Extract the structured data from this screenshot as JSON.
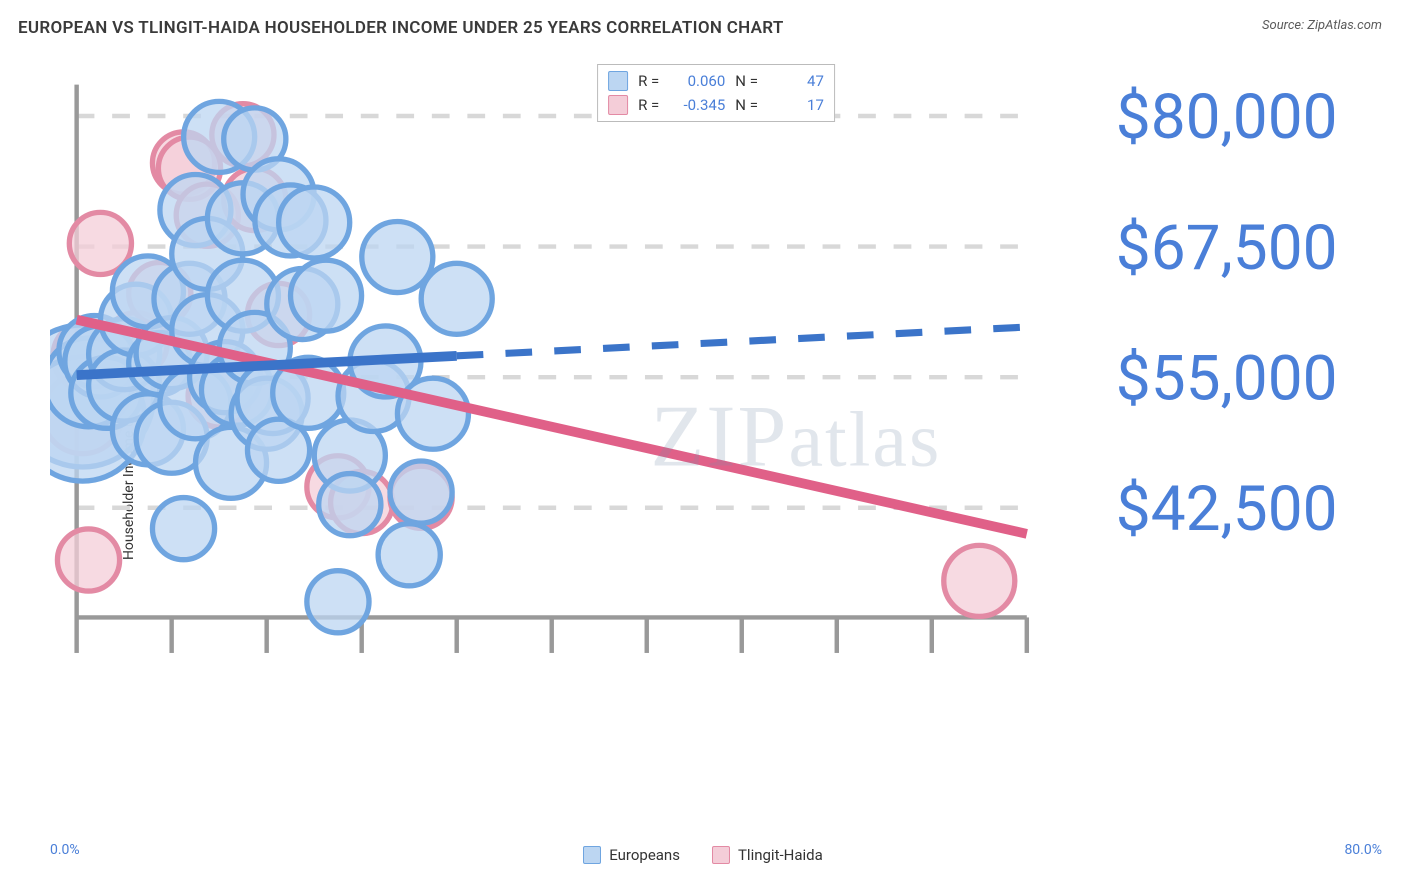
{
  "header": {
    "title": "EUROPEAN VS TLINGIT-HAIDA HOUSEHOLDER INCOME UNDER 25 YEARS CORRELATION CHART",
    "source": "Source: ZipAtlas.com"
  },
  "watermark": "ZIPatlas",
  "chart": {
    "type": "scatter",
    "ylabel": "Householder Income Under 25 years",
    "xlim": [
      0,
      80
    ],
    "ylim": [
      32000,
      83000
    ],
    "x_unit": "%",
    "y_unit": "$",
    "x_ticks_minor_step": 8,
    "y_ticks": [
      42500,
      55000,
      67500,
      80000
    ],
    "y_tick_labels": [
      "$42,500",
      "$55,000",
      "$67,500",
      "$80,000"
    ],
    "x_axis_labels": {
      "min": "0.0%",
      "max": "80.0%"
    },
    "grid_color": "#d8d8d8",
    "axis_color": "#999999",
    "background_color": "#ffffff",
    "label_fontsize": 14,
    "tick_label_color": "#4a7fd8",
    "series": {
      "europeans": {
        "label": "Europeans",
        "fill": "#bcd6f2",
        "stroke": "#6fa5e0",
        "line_color": "#3b74c9",
        "r_value": "0.060",
        "n_value": "47",
        "trend": {
          "y_at_xmin": 55200,
          "y_at_xmax": 59800,
          "solid_until_x": 32
        },
        "points": [
          {
            "x": 0.5,
            "y": 53200,
            "r": 16
          },
          {
            "x": 0.5,
            "y": 51000,
            "r": 14
          },
          {
            "x": 1,
            "y": 54500,
            "r": 10
          },
          {
            "x": 1.5,
            "y": 57500,
            "r": 8
          },
          {
            "x": 2,
            "y": 56500,
            "r": 8
          },
          {
            "x": 2.5,
            "y": 53500,
            "r": 8
          },
          {
            "x": 4,
            "y": 57200,
            "r": 8
          },
          {
            "x": 4,
            "y": 54200,
            "r": 8
          },
          {
            "x": 5,
            "y": 60500,
            "r": 8
          },
          {
            "x": 6,
            "y": 50000,
            "r": 8
          },
          {
            "x": 6,
            "y": 63200,
            "r": 8
          },
          {
            "x": 7,
            "y": 56300,
            "r": 7
          },
          {
            "x": 8,
            "y": 57300,
            "r": 8
          },
          {
            "x": 8,
            "y": 49200,
            "r": 8
          },
          {
            "x": 9,
            "y": 40500,
            "r": 7
          },
          {
            "x": 9.5,
            "y": 62500,
            "r": 8
          },
          {
            "x": 10,
            "y": 71000,
            "r": 8
          },
          {
            "x": 10,
            "y": 52500,
            "r": 8
          },
          {
            "x": 11,
            "y": 59500,
            "r": 8
          },
          {
            "x": 11,
            "y": 66800,
            "r": 8
          },
          {
            "x": 12,
            "y": 78000,
            "r": 8
          },
          {
            "x": 12.5,
            "y": 55000,
            "r": 8
          },
          {
            "x": 13,
            "y": 46800,
            "r": 8
          },
          {
            "x": 13.5,
            "y": 53800,
            "r": 8
          },
          {
            "x": 14,
            "y": 70200,
            "r": 8
          },
          {
            "x": 14,
            "y": 62800,
            "r": 8
          },
          {
            "x": 15,
            "y": 57800,
            "r": 8
          },
          {
            "x": 15,
            "y": 77800,
            "r": 7
          },
          {
            "x": 16,
            "y": 51500,
            "r": 8
          },
          {
            "x": 16.5,
            "y": 53000,
            "r": 8
          },
          {
            "x": 17,
            "y": 72500,
            "r": 8
          },
          {
            "x": 17,
            "y": 48000,
            "r": 7
          },
          {
            "x": 18,
            "y": 70000,
            "r": 8
          },
          {
            "x": 19,
            "y": 62000,
            "r": 8
          },
          {
            "x": 19.5,
            "y": 53500,
            "r": 8
          },
          {
            "x": 20,
            "y": 69800,
            "r": 8
          },
          {
            "x": 21,
            "y": 62800,
            "r": 8
          },
          {
            "x": 22,
            "y": 33500,
            "r": 7
          },
          {
            "x": 23,
            "y": 47500,
            "r": 8
          },
          {
            "x": 23,
            "y": 42800,
            "r": 7
          },
          {
            "x": 25,
            "y": 53200,
            "r": 8
          },
          {
            "x": 26,
            "y": 56500,
            "r": 8
          },
          {
            "x": 27,
            "y": 66500,
            "r": 8
          },
          {
            "x": 28,
            "y": 38000,
            "r": 7
          },
          {
            "x": 29,
            "y": 44000,
            "r": 7
          },
          {
            "x": 30,
            "y": 51500,
            "r": 8
          },
          {
            "x": 32,
            "y": 62500,
            "r": 8
          }
        ]
      },
      "tlingit": {
        "label": "Tlingit-Haida",
        "fill": "#f4cdd8",
        "stroke": "#e38aa4",
        "line_color": "#e06088",
        "r_value": "-0.345",
        "n_value": "17",
        "trend": {
          "y_at_xmin": 60500,
          "y_at_xmax": 40000,
          "solid_until_x": 80
        },
        "points": [
          {
            "x": 0.5,
            "y": 51500,
            "r": 9
          },
          {
            "x": 1,
            "y": 57000,
            "r": 8
          },
          {
            "x": 1,
            "y": 37500,
            "r": 7
          },
          {
            "x": 2,
            "y": 67800,
            "r": 7
          },
          {
            "x": 5,
            "y": 58200,
            "r": 7
          },
          {
            "x": 7,
            "y": 63000,
            "r": 7
          },
          {
            "x": 9,
            "y": 75500,
            "r": 7
          },
          {
            "x": 9.5,
            "y": 75000,
            "r": 7
          },
          {
            "x": 11,
            "y": 70500,
            "r": 7
          },
          {
            "x": 12,
            "y": 53200,
            "r": 7
          },
          {
            "x": 14,
            "y": 78200,
            "r": 7
          },
          {
            "x": 15,
            "y": 72000,
            "r": 7
          },
          {
            "x": 17,
            "y": 61000,
            "r": 7
          },
          {
            "x": 22,
            "y": 44500,
            "r": 7
          },
          {
            "x": 24,
            "y": 43000,
            "r": 7
          },
          {
            "x": 29,
            "y": 43500,
            "r": 7
          },
          {
            "x": 76,
            "y": 35500,
            "r": 8
          }
        ]
      }
    }
  },
  "legend": {
    "top": {
      "r_label": "R =",
      "n_label": "N ="
    },
    "bottom_labels": [
      "Europeans",
      "Tlingit-Haida"
    ]
  }
}
